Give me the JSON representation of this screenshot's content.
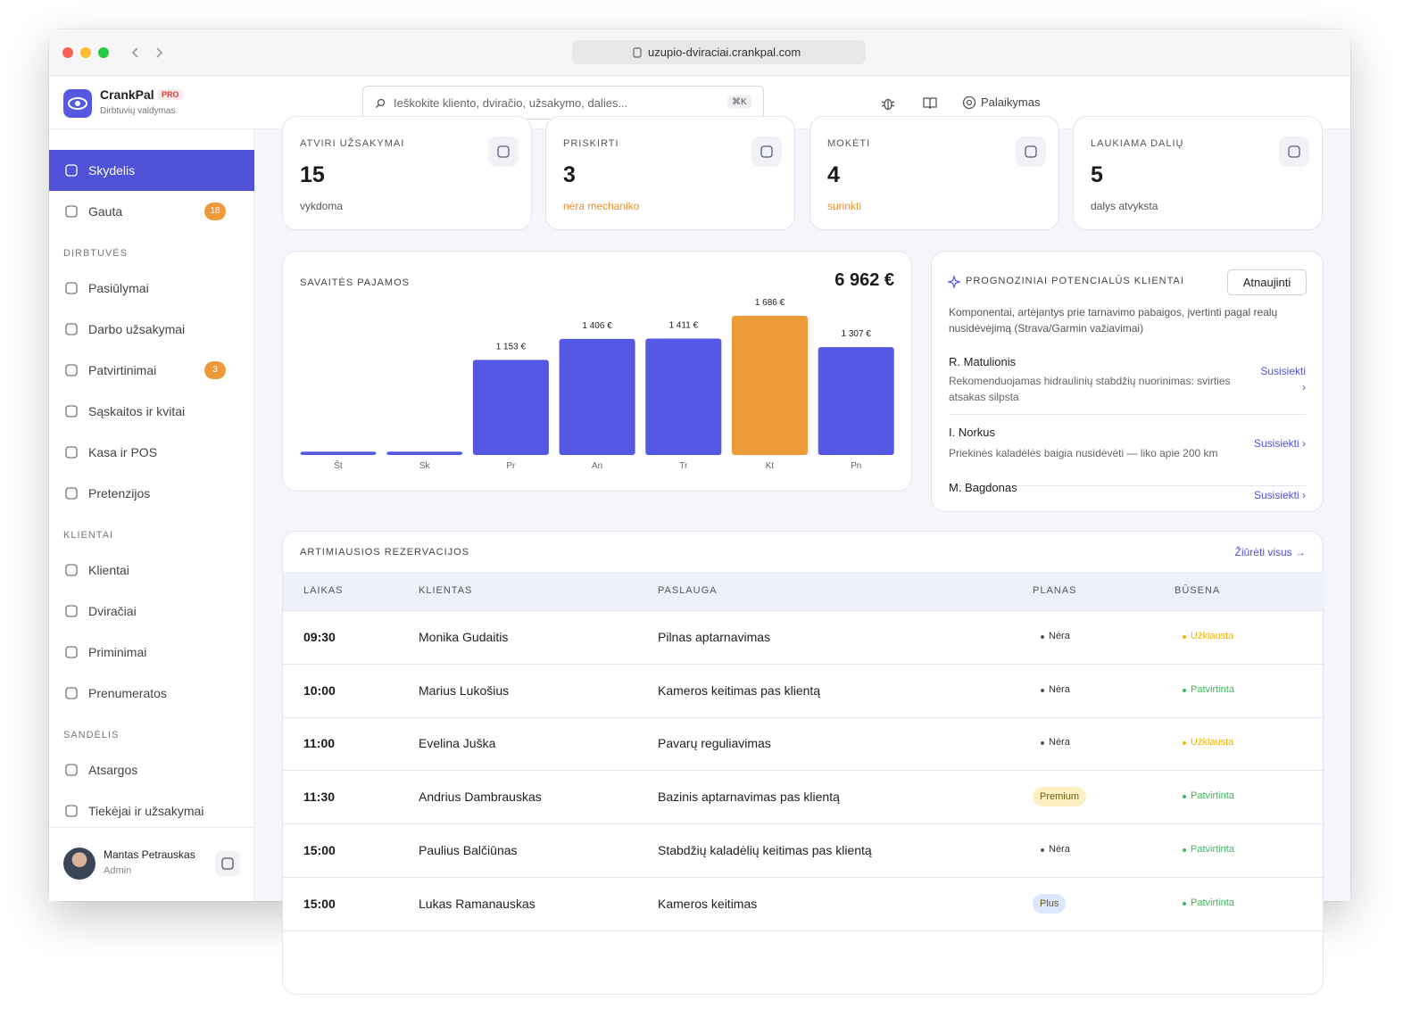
{
  "browser": {
    "url": "uzupio-dviraciai.crankpal.com"
  },
  "header": {
    "brand": "CrankPal",
    "badge": "PRO",
    "tagline": "Dirbtuvių valdymas",
    "search_placeholder": "Ieškokite kliento, dviračio, užsakymo, dalies...",
    "shortcut": "⌘K",
    "support": "Palaikymas"
  },
  "sidebar": {
    "top": [
      {
        "label": "Skydelis",
        "active": true
      },
      {
        "label": "Gauta",
        "badge": 18
      }
    ],
    "sections": [
      {
        "title": "DIRBTUVĖS",
        "items": [
          {
            "label": "Pasiūlymai"
          },
          {
            "label": "Darbo užsakymai"
          },
          {
            "label": "Patvirtinimai",
            "badge": 3
          },
          {
            "label": "Sąskaitos ir kvitai"
          },
          {
            "label": "Kasa ir POS"
          },
          {
            "label": "Pretenzijos"
          }
        ]
      },
      {
        "title": "KLIENTAI",
        "items": [
          {
            "label": "Klientai"
          },
          {
            "label": "Dviračiai"
          },
          {
            "label": "Priminimai"
          },
          {
            "label": "Prenumeratos"
          }
        ]
      },
      {
        "title": "SANDĖLIS",
        "items": [
          {
            "label": "Atsargos"
          },
          {
            "label": "Tiekėjai ir užsakymai"
          }
        ]
      }
    ],
    "user": {
      "name": "Mantas Petrauskas",
      "role": "Admin"
    }
  },
  "stats": [
    {
      "label": "ATVIRI UŽSAKYMAI",
      "value": 15,
      "note": "vykdoma",
      "note_color": "#555555"
    },
    {
      "label": "PRISKIRTI",
      "value": 3,
      "note": "nėra mechaniko",
      "note_color": "#ee8f2b"
    },
    {
      "label": "MOKĖTI",
      "value": 4,
      "note": "surinkti",
      "note_color": "#ee8f2b"
    },
    {
      "label": "LAUKIAMA DALIŲ",
      "value": 5,
      "note": "dalys atvyksta",
      "note_color": "#555555"
    }
  ],
  "chart_data": {
    "type": "bar",
    "title": "SAVAITĖS PAJAMOS",
    "total": "6 962 €",
    "categories": [
      "Št",
      "Sk",
      "Pr",
      "An",
      "Tr",
      "Kt",
      "Pn"
    ],
    "values": [
      40,
      40,
      1153,
      1406,
      1411,
      1686,
      1307
    ],
    "value_labels": [
      null,
      null,
      "1 153 €",
      "1 406 €",
      "1 411 €",
      "1 686 €",
      "1 307 €"
    ],
    "colors": [
      "#5558e2",
      "#5558e2",
      "#5558e2",
      "#5558e2",
      "#5558e2",
      "#ec9a3a",
      "#5558e2"
    ]
  },
  "leads": {
    "title": "PROGNOZINIAI POTENCIALŪS KLIENTAI",
    "button": "Atnaujinti",
    "description": "Komponentai, artėjantys prie tarnavimo pabaigos, įvertinti pagal realų nusidėvėjimą (Strava/Garmin važiavimai)",
    "items": [
      {
        "name": "R. Matulionis",
        "note": "Rekomenduojamas hidraulinių stabdžių nuorinimas: svirties atsakas silpsta",
        "action": "Susisiekti ›"
      },
      {
        "name": "I. Norkus",
        "note": "Priekinės kaladėlės baigia nusidėvėti — liko apie 200 km",
        "action": "Susisiekti ›"
      },
      {
        "name": "M. Bagdonas",
        "action": "Susisiekti ›"
      }
    ]
  },
  "bookings": {
    "title": "ARTIMIAUSIOS REZERVACIJOS",
    "link": "Žiūrėti visus →",
    "columns": [
      "LAIKAS",
      "KLIENTAS",
      "PASLAUGA",
      "PLANAS",
      "BŪSENA"
    ],
    "rows": [
      {
        "time": "09:30",
        "client": "Monika Gudaitis",
        "service": "Pilnas aptarnavimas",
        "plan": "Nėra",
        "status": "Užklausta",
        "status_color": "#f0b400"
      },
      {
        "time": "10:00",
        "client": "Marius Lukošius",
        "service": "Kameros keitimas pas klientą",
        "plan": "Nėra",
        "status": "Patvirtinta",
        "status_color": "#3fb660"
      },
      {
        "time": "11:00",
        "client": "Evelina Juška",
        "service": "Pavarų reguliavimas",
        "plan": "Nėra",
        "status": "Užklausta",
        "status_color": "#f0b400"
      },
      {
        "time": "11:30",
        "client": "Andrius Dambrauskas",
        "service": "Bazinis aptarnavimas pas klientą",
        "plan": "Premium",
        "plan_color": "#fdf1c4",
        "status": "Patvirtinta",
        "status_color": "#3fb660"
      },
      {
        "time": "15:00",
        "client": "Paulius Balčiūnas",
        "service": "Stabdžių kaladėlių keitimas pas klientą",
        "plan": "Nėra",
        "status": "Patvirtinta",
        "status_color": "#3fb660"
      },
      {
        "time": "15:00",
        "client": "Lukas Ramanauskas",
        "service": "Kameros keitimas",
        "plan": "Plus",
        "plan_color": "#dbe6ff",
        "status": "Patvirtinta",
        "status_color": "#3fb660"
      }
    ]
  }
}
